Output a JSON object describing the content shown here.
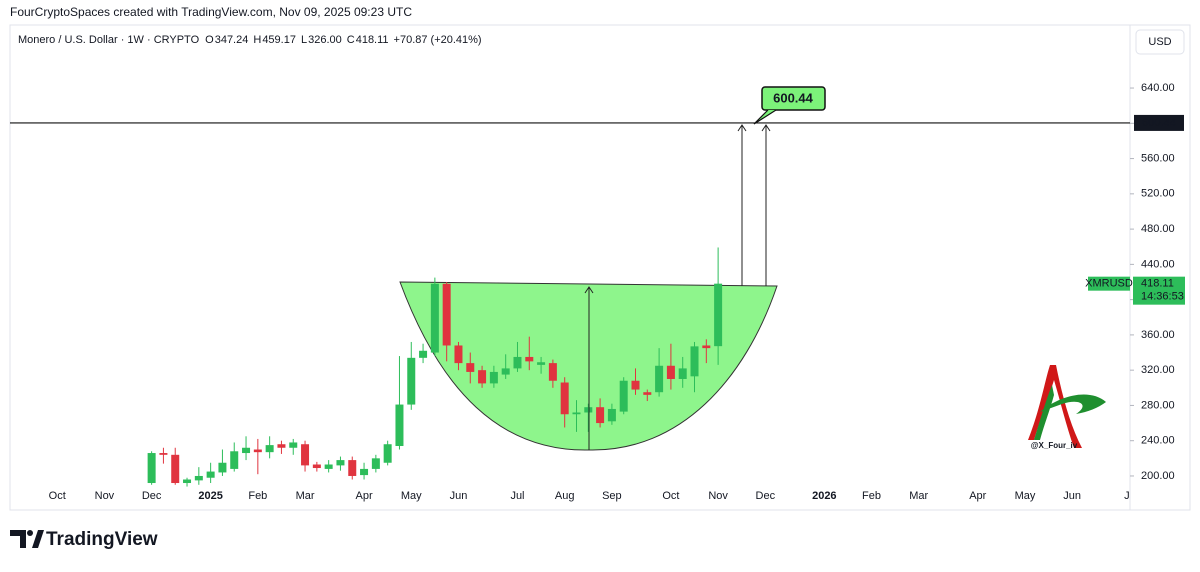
{
  "header": {
    "attribution": "FourCryptoSpaces created with TradingView.com, Nov 09, 2025 09:23 UTC"
  },
  "footer": {
    "brand": "TradingView"
  },
  "chart_data": {
    "type": "candlestick",
    "title": "Monero / U.S. Dollar · 1W · CRYPTO",
    "ohlc_legend": [
      {
        "key": "O",
        "value": "347.24"
      },
      {
        "key": "H",
        "value": "459.17"
      },
      {
        "key": "L",
        "value": "326.00"
      },
      {
        "key": "C",
        "value": "418.11"
      }
    ],
    "change": "+70.87 (+20.41%)",
    "currency": "USD",
    "symbol": "XMRUSD",
    "countdown": "14:36:53",
    "watermark": "@X_Four_iv",
    "target_level": 600.44,
    "up_color": "#2dbd5a",
    "down_color": "#e0343f",
    "x": [
      0,
      1,
      2,
      3,
      4,
      5,
      6,
      7,
      8,
      9,
      10,
      11,
      12,
      13,
      14,
      15,
      16,
      17,
      18,
      19,
      20,
      21,
      22,
      23,
      24,
      25,
      26,
      27,
      28,
      29,
      30,
      31,
      32,
      33,
      34,
      35,
      36,
      37,
      38,
      39,
      40,
      41,
      42,
      43,
      44,
      45,
      46,
      47,
      48
    ],
    "open": [
      192,
      226,
      224,
      192,
      195,
      198,
      204,
      208,
      226,
      230,
      227,
      236,
      232,
      236,
      213,
      208,
      212,
      218,
      201,
      208,
      215,
      234,
      281,
      334,
      340,
      418,
      348,
      328,
      320,
      305,
      315,
      322,
      335,
      326,
      328,
      306,
      270,
      272,
      278,
      262,
      273,
      308,
      295,
      295,
      325,
      310,
      313,
      348,
      347.24
    ],
    "high": [
      228,
      232,
      232,
      198,
      210,
      215,
      230,
      238,
      245,
      242,
      245,
      240,
      242,
      240,
      216,
      218,
      222,
      222,
      215,
      224,
      240,
      336,
      352,
      350,
      425,
      420,
      352,
      340,
      325,
      325,
      338,
      352,
      358,
      335,
      332,
      312,
      286,
      282,
      288,
      282,
      312,
      322,
      298,
      345,
      350,
      335,
      352,
      355,
      459.17
    ],
    "low": [
      190,
      214,
      190,
      188,
      190,
      192,
      200,
      205,
      218,
      202,
      220,
      225,
      224,
      205,
      205,
      204,
      206,
      196,
      196,
      204,
      212,
      230,
      275,
      328,
      336,
      330,
      320,
      305,
      300,
      300,
      310,
      318,
      320,
      316,
      300,
      255,
      250,
      250,
      255,
      258,
      270,
      292,
      285,
      290,
      298,
      300,
      295,
      328,
      326
    ],
    "close": [
      226,
      224,
      192,
      196,
      200,
      205,
      215,
      228,
      232,
      227,
      235,
      232,
      238,
      212,
      209,
      213,
      218,
      200,
      208,
      220,
      236,
      281,
      334,
      342,
      418,
      348,
      328,
      318,
      305,
      318,
      322,
      335,
      330,
      329,
      308,
      270,
      272,
      278,
      260,
      276,
      308,
      298,
      292,
      325,
      310,
      322,
      347,
      345,
      418.11
    ],
    "xlim": [
      -12,
      82.9
    ],
    "xticks": [
      {
        "value": -8,
        "label": "Oct"
      },
      {
        "value": -4,
        "label": "Nov"
      },
      {
        "value": 0,
        "label": "Dec"
      },
      {
        "value": 5,
        "label": "2025"
      },
      {
        "value": 9,
        "label": "Feb"
      },
      {
        "value": 13,
        "label": "Mar"
      },
      {
        "value": 18,
        "label": "Apr"
      },
      {
        "value": 22,
        "label": "May"
      },
      {
        "value": 26,
        "label": "Jun"
      },
      {
        "value": 31,
        "label": "Jul"
      },
      {
        "value": 35,
        "label": "Aug"
      },
      {
        "value": 39,
        "label": "Sep"
      },
      {
        "value": 44,
        "label": "Oct"
      },
      {
        "value": 48,
        "label": "Nov"
      },
      {
        "value": 52,
        "label": "Dec"
      },
      {
        "value": 57,
        "label": "2026"
      },
      {
        "value": 61,
        "label": "Feb"
      },
      {
        "value": 65,
        "label": "Mar"
      },
      {
        "value": 70,
        "label": "Apr"
      },
      {
        "value": 74,
        "label": "May"
      },
      {
        "value": 78,
        "label": "Jun"
      },
      {
        "value": 83,
        "label": "Jul"
      }
    ],
    "ylim": [
      161.4,
      711.5
    ],
    "yticks": [
      {
        "value": 200,
        "label": "200.00"
      },
      {
        "value": 240,
        "label": "240.00"
      },
      {
        "value": 280,
        "label": "280.00"
      },
      {
        "value": 320,
        "label": "320.00"
      },
      {
        "value": 360,
        "label": "360.00"
      },
      {
        "value": 400,
        "label": "400.00"
      },
      {
        "value": 440,
        "label": "440.00"
      },
      {
        "value": 480,
        "label": "480.00"
      },
      {
        "value": 520,
        "label": "520.00"
      },
      {
        "value": 560,
        "label": "560.00"
      },
      {
        "value": 600,
        "label": "600.00"
      },
      {
        "value": 640,
        "label": "640.00"
      }
    ]
  }
}
